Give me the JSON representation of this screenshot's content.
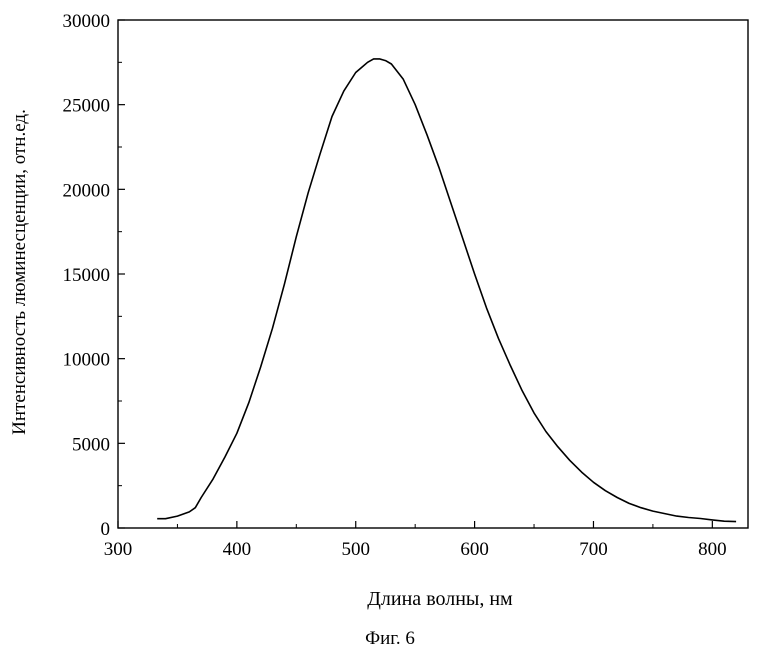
{
  "chart_data": {
    "type": "line",
    "xlabel": "Длина волны, нм",
    "ylabel": "Интенсивность люминесценции, отн.ед.",
    "xlim": [
      300,
      830
    ],
    "ylim": [
      0,
      30000
    ],
    "x_ticks": [
      300,
      400,
      500,
      600,
      700,
      800
    ],
    "y_ticks": [
      0,
      5000,
      10000,
      15000,
      20000,
      25000,
      30000
    ],
    "x_tick_labels": [
      "300",
      "400",
      "500",
      "600",
      "700",
      "800"
    ],
    "y_tick_labels": [
      "0",
      "5000",
      "10000",
      "15000",
      "20000",
      "25000",
      "30000"
    ],
    "grid": false,
    "series": [
      {
        "color": "#000000",
        "x": [
          333,
          340,
          350,
          360,
          365,
          370,
          380,
          390,
          400,
          410,
          420,
          430,
          440,
          450,
          460,
          470,
          480,
          490,
          500,
          505,
          510,
          515,
          520,
          525,
          530,
          540,
          550,
          560,
          570,
          580,
          590,
          600,
          610,
          620,
          630,
          640,
          650,
          660,
          670,
          680,
          690,
          700,
          710,
          720,
          730,
          740,
          750,
          760,
          770,
          780,
          790,
          800,
          810,
          820
        ],
        "y": [
          550,
          550,
          700,
          950,
          1200,
          1800,
          2900,
          4200,
          5600,
          7400,
          9500,
          11800,
          14400,
          17200,
          19800,
          22100,
          24300,
          25800,
          26900,
          27200,
          27500,
          27700,
          27700,
          27600,
          27400,
          26500,
          25000,
          23200,
          21300,
          19200,
          17100,
          15000,
          13000,
          11200,
          9600,
          8100,
          6800,
          5700,
          4800,
          4000,
          3300,
          2700,
          2200,
          1800,
          1450,
          1200,
          1000,
          850,
          700,
          620,
          560,
          480,
          400,
          380
        ]
      }
    ]
  },
  "figure_caption": "Фиг. 6"
}
